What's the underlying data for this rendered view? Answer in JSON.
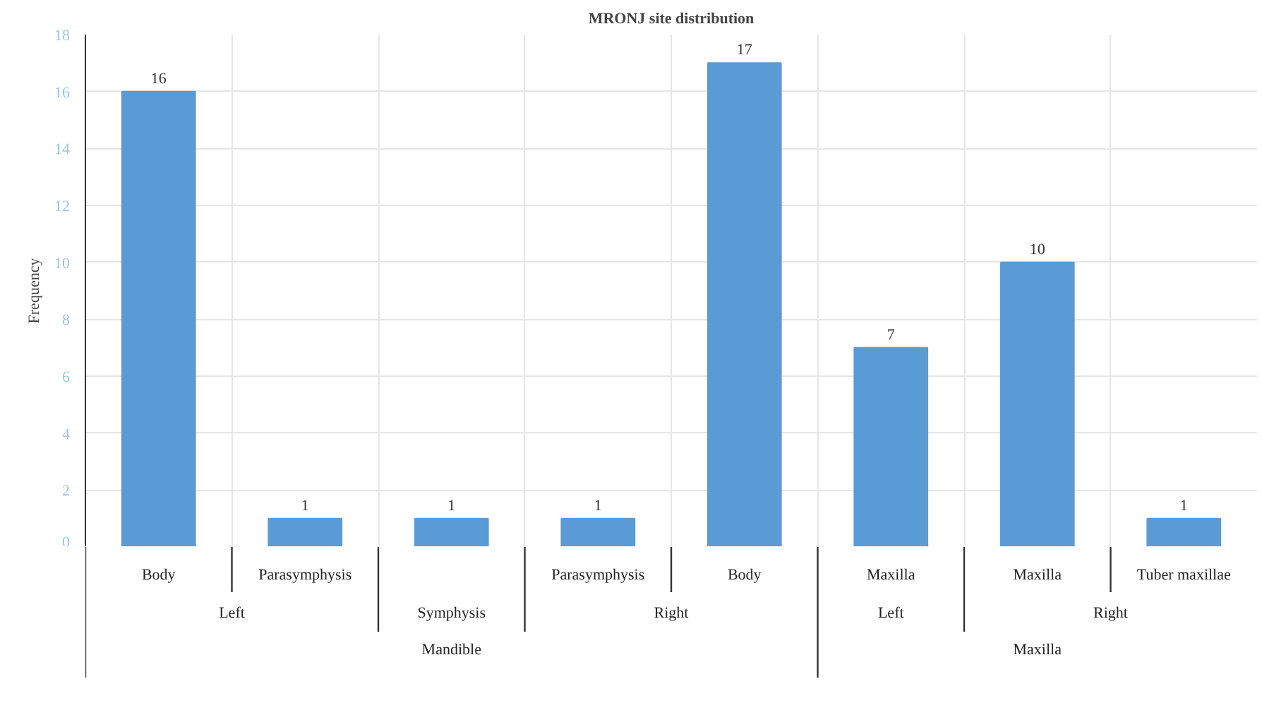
{
  "chart_data": {
    "type": "bar",
    "title": "MRONJ site distribution",
    "ylabel": "Frequency",
    "categories": [
      "Body",
      "Parasymphysis",
      null,
      "Parasymphysis",
      "Body",
      "Maxilla",
      "Maxilla",
      "Tuber maxillae"
    ],
    "values": [
      16,
      1,
      1,
      1,
      17,
      7,
      10,
      1
    ],
    "color": "#5b9bd5",
    "ylim": [
      0,
      18
    ],
    "yticks": [
      0,
      2,
      4,
      6,
      8,
      10,
      12,
      14,
      16,
      18
    ],
    "grid": true,
    "data_labels": true,
    "annotations": [
      "Left",
      "Symphysis",
      "Right",
      "Left",
      "Right",
      "Mandible",
      "Maxilla"
    ]
  }
}
